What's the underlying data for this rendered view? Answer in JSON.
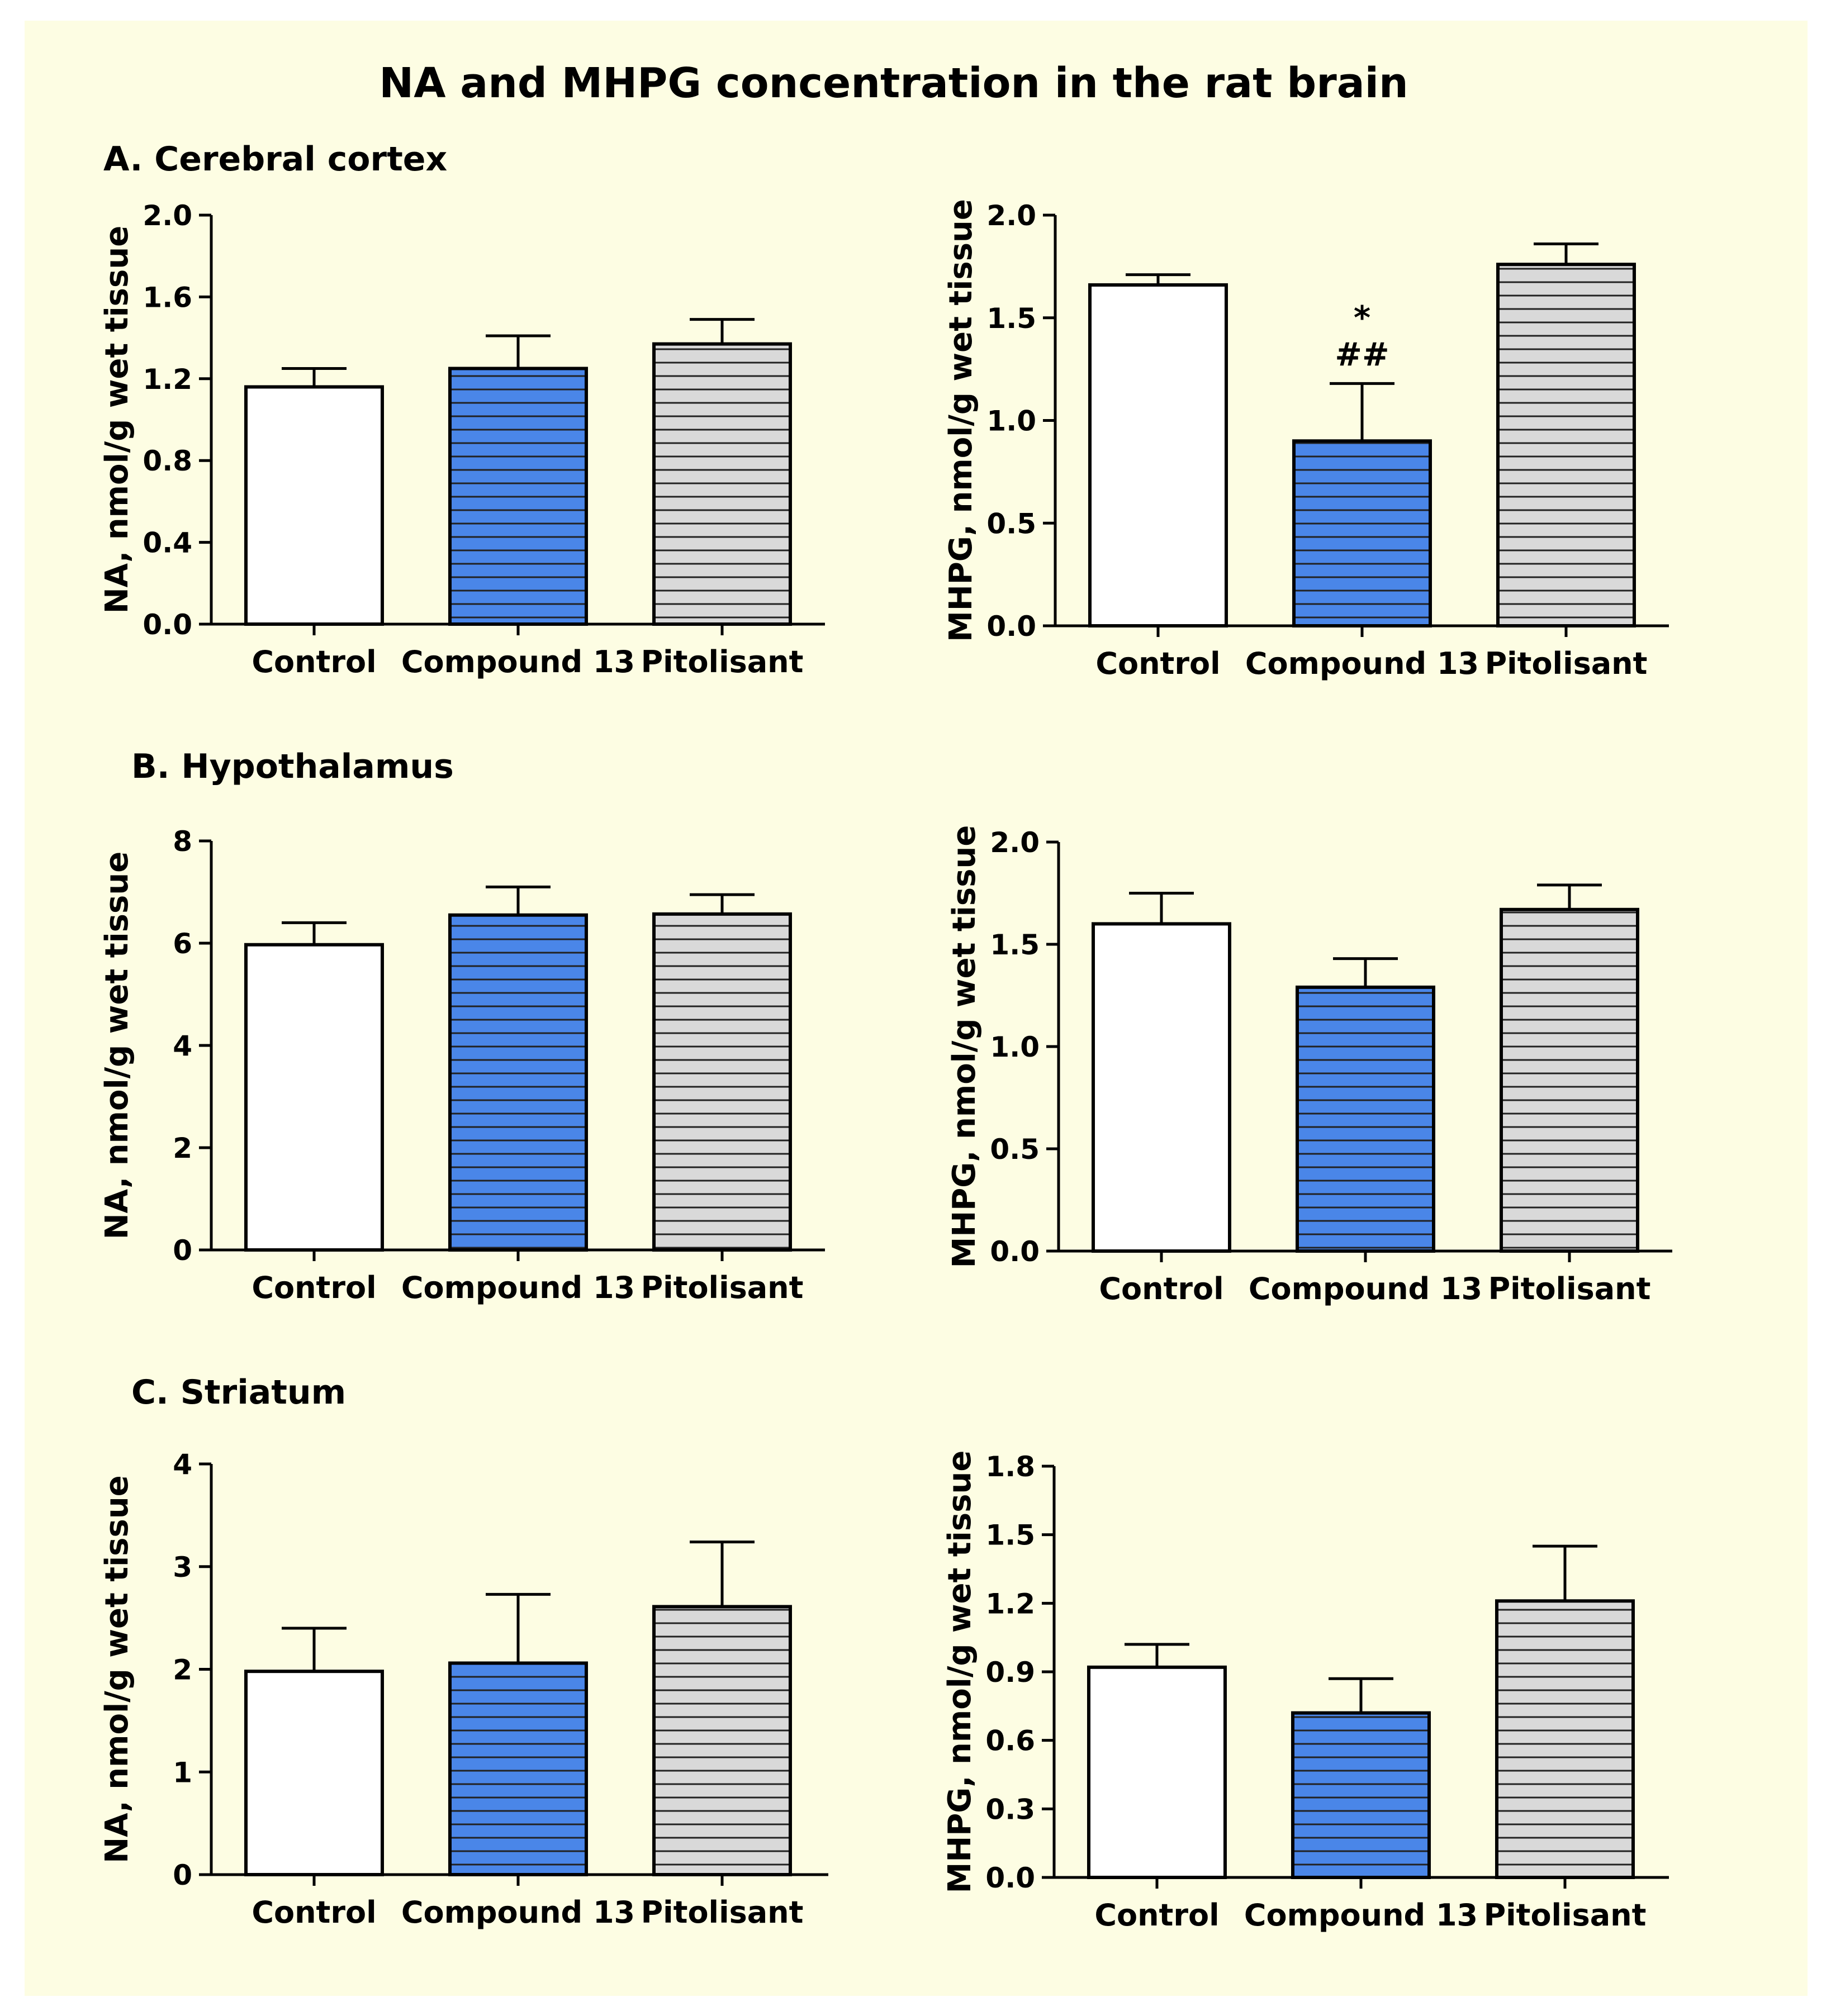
{
  "figure": {
    "title": "NA and MHPG concentration in the rat brain",
    "colors": {
      "background": "#fdfde3",
      "control": "#ffffff",
      "compound": "#4a86e8",
      "pitolisant": "#d9d9d9",
      "stripe": "#222222"
    }
  },
  "sections": [
    {
      "label": "A. Cerebral cortex"
    },
    {
      "label": "B. Hypothalamus"
    },
    {
      "label": "C. Striatum"
    }
  ],
  "chart_data": [
    {
      "type": "bar",
      "section": "A. Cerebral cortex",
      "ylabel": "NA, nmol/g  wet tissue",
      "categories": [
        "Control",
        "Compound 13",
        "Pitolisant"
      ],
      "values": [
        1.16,
        1.25,
        1.37
      ],
      "errors": [
        0.09,
        0.16,
        0.12
      ],
      "ylim": [
        0,
        2.0
      ],
      "yticks": [
        0,
        0.4,
        0.8,
        1.2,
        1.6,
        2.0
      ],
      "ytick_labels": [
        "0.0",
        "0.4",
        "0.8",
        "1.2",
        "1.6",
        "2.0"
      ],
      "annotations": []
    },
    {
      "type": "bar",
      "section": "A. Cerebral cortex",
      "ylabel": "MHPG, nmol/g  wet tissue",
      "categories": [
        "Control",
        "Compound 13",
        "Pitolisant"
      ],
      "values": [
        1.66,
        0.9,
        1.76
      ],
      "errors": [
        0.05,
        0.28,
        0.1
      ],
      "ylim": [
        0,
        2.0
      ],
      "yticks": [
        0,
        0.5,
        1.0,
        1.5,
        2.0
      ],
      "ytick_labels": [
        "0.0",
        "0.5",
        "1.0",
        "1.5",
        "2.0"
      ],
      "annotations": [
        {
          "bar": 1,
          "lines": [
            "*",
            "##"
          ]
        }
      ]
    },
    {
      "type": "bar",
      "section": "B. Hypothalamus",
      "ylabel": "NA, nmol/g  wet tissue",
      "categories": [
        "Control",
        "Compound 13",
        "Pitolisant"
      ],
      "values": [
        5.97,
        6.55,
        6.57
      ],
      "errors": [
        0.43,
        0.55,
        0.38
      ],
      "ylim": [
        0,
        8
      ],
      "yticks": [
        0,
        2,
        4,
        6,
        8
      ],
      "ytick_labels": [
        "0",
        "2",
        "4",
        "6",
        "8"
      ],
      "annotations": []
    },
    {
      "type": "bar",
      "section": "B. Hypothalamus",
      "ylabel": "MHPG, nmol/g  wet tissue",
      "categories": [
        "Control",
        "Compound 13",
        "Pitolisant"
      ],
      "values": [
        1.6,
        1.29,
        1.67
      ],
      "errors": [
        0.15,
        0.14,
        0.12
      ],
      "ylim": [
        0,
        2.0
      ],
      "yticks": [
        0,
        0.5,
        1.0,
        1.5,
        2.0
      ],
      "ytick_labels": [
        "0.0",
        "0.5",
        "1.0",
        "1.5",
        "2.0"
      ],
      "annotations": []
    },
    {
      "type": "bar",
      "section": "C. Striatum",
      "ylabel": "NA, nmol/g  wet tissue",
      "categories": [
        "Control",
        "Compound 13",
        "Pitolisant"
      ],
      "values": [
        1.98,
        2.06,
        2.61
      ],
      "errors": [
        0.42,
        0.67,
        0.63
      ],
      "ylim": [
        0,
        4
      ],
      "yticks": [
        0,
        1,
        2,
        3,
        4
      ],
      "ytick_labels": [
        "0",
        "1",
        "2",
        "3",
        "4"
      ],
      "annotations": []
    },
    {
      "type": "bar",
      "section": "C. Striatum",
      "ylabel": "MHPG, nmol/g  wet tissue",
      "categories": [
        "Control",
        "Compound 13",
        "Pitolisant"
      ],
      "values": [
        0.92,
        0.72,
        1.21
      ],
      "errors": [
        0.1,
        0.15,
        0.24
      ],
      "ylim": [
        0,
        1.8
      ],
      "yticks": [
        0,
        0.3,
        0.6,
        0.9,
        1.2,
        1.5,
        1.8
      ],
      "ytick_labels": [
        "0.0",
        "0.3",
        "0.6",
        "0.9",
        "1.2",
        "1.5",
        "1.8"
      ],
      "annotations": []
    }
  ]
}
